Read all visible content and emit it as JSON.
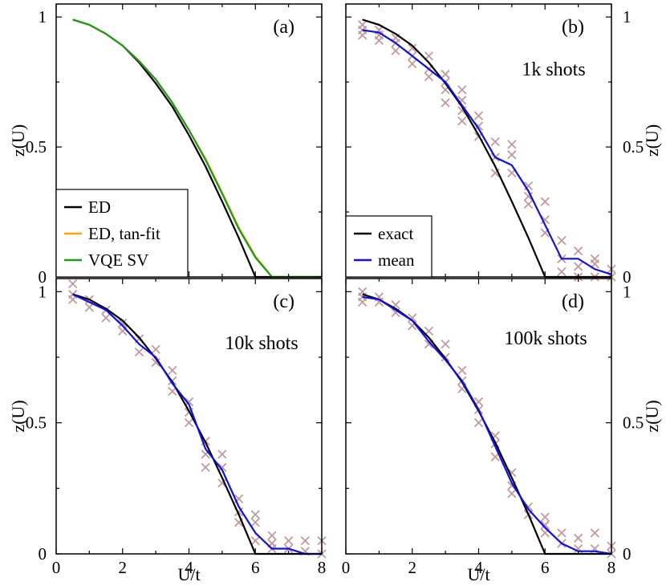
{
  "chart_data": [
    {
      "panel": "(a)",
      "type": "line",
      "ylabel": "z(U)",
      "xlabel": "",
      "xlim": [
        0,
        8
      ],
      "ylim": [
        0,
        1.05
      ],
      "xticks": [
        "",
        "",
        "",
        "",
        ""
      ],
      "yticks": [
        "0",
        "0.5",
        "1"
      ],
      "ytick_side": "left",
      "legend": "bottom-left",
      "series": [
        {
          "name": "ED",
          "color": "#000000",
          "x": [
            0.5,
            1,
            1.5,
            2,
            2.5,
            3,
            3.5,
            4,
            4.5,
            5,
            5.5,
            6,
            6.5,
            7,
            7.5,
            8
          ],
          "y": [
            0.99,
            0.97,
            0.935,
            0.89,
            0.825,
            0.745,
            0.655,
            0.545,
            0.425,
            0.29,
            0.15,
            0,
            0,
            0,
            0,
            0
          ]
        },
        {
          "name": "ED, tan-fit",
          "color": "#ffa500",
          "x": [
            0.5,
            1,
            1.5,
            2,
            2.5,
            3,
            3.5,
            4,
            4.5,
            5,
            5.5,
            6,
            6.5,
            7,
            7.5,
            8
          ],
          "y": [
            0.99,
            0.97,
            0.935,
            0.89,
            0.83,
            0.76,
            0.67,
            0.565,
            0.455,
            0.325,
            0.19,
            0.08,
            0,
            0,
            0,
            0
          ]
        },
        {
          "name": "VQE SV",
          "color": "#1f9a1f",
          "x": [
            0.5,
            1,
            1.5,
            2,
            2.5,
            3,
            3.5,
            4,
            4.5,
            5,
            5.5,
            6,
            6.5,
            7,
            7.5,
            8
          ],
          "y": [
            0.99,
            0.97,
            0.935,
            0.89,
            0.83,
            0.76,
            0.67,
            0.565,
            0.45,
            0.32,
            0.185,
            0.075,
            0,
            0,
            0,
            0
          ]
        }
      ],
      "scatter": []
    },
    {
      "panel": "(b)",
      "type": "line",
      "annotation": "1k shots",
      "ylabel": "z(U)",
      "xlabel": "",
      "xlim": [
        0,
        8
      ],
      "ylim": [
        0,
        1.05
      ],
      "xticks": [
        "",
        "",
        "",
        "",
        ""
      ],
      "yticks": [
        "0",
        "0.5",
        "1"
      ],
      "ytick_side": "right",
      "legend": "bottom-left",
      "series": [
        {
          "name": "exact",
          "color": "#000000",
          "x": [
            0.5,
            1,
            1.5,
            2,
            2.5,
            3,
            3.5,
            4,
            4.5,
            5,
            5.5,
            6,
            6.5,
            7,
            7.5,
            8
          ],
          "y": [
            0.99,
            0.97,
            0.935,
            0.89,
            0.825,
            0.745,
            0.655,
            0.545,
            0.425,
            0.29,
            0.15,
            0,
            0,
            0,
            0,
            0
          ]
        },
        {
          "name": "mean",
          "color": "#1010e0",
          "x": [
            0.5,
            1,
            1.5,
            2,
            2.5,
            3,
            3.5,
            4,
            4.5,
            5,
            5.5,
            6,
            6.5,
            7,
            7.5,
            8
          ],
          "y": [
            0.95,
            0.94,
            0.9,
            0.85,
            0.8,
            0.75,
            0.66,
            0.57,
            0.46,
            0.43,
            0.33,
            0.2,
            0.07,
            0.07,
            0.03,
            0.01
          ]
        }
      ],
      "scatter": [
        [
          0.5,
          0.97
        ],
        [
          0.5,
          0.95
        ],
        [
          0.5,
          0.93
        ],
        [
          1,
          0.95
        ],
        [
          1,
          0.93
        ],
        [
          1,
          0.91
        ],
        [
          1.5,
          0.92
        ],
        [
          1.5,
          0.9
        ],
        [
          1.5,
          0.87
        ],
        [
          2,
          0.88
        ],
        [
          2,
          0.85
        ],
        [
          2,
          0.82
        ],
        [
          2.5,
          0.85
        ],
        [
          2.5,
          0.8
        ],
        [
          2.5,
          0.77
        ],
        [
          3,
          0.78
        ],
        [
          3,
          0.75
        ],
        [
          3,
          0.72
        ],
        [
          3,
          0.67
        ],
        [
          3.5,
          0.72
        ],
        [
          3.5,
          0.68
        ],
        [
          3.5,
          0.64
        ],
        [
          3.5,
          0.6
        ],
        [
          4,
          0.62
        ],
        [
          4,
          0.58
        ],
        [
          4,
          0.54
        ],
        [
          4.5,
          0.52
        ],
        [
          4.5,
          0.46
        ],
        [
          4.5,
          0.4
        ],
        [
          5,
          0.51
        ],
        [
          5,
          0.47
        ],
        [
          5,
          0.4
        ],
        [
          5.5,
          0.35
        ],
        [
          5.5,
          0.31
        ],
        [
          5.5,
          0.28
        ],
        [
          6,
          0.29
        ],
        [
          6,
          0.22
        ],
        [
          6,
          0.17
        ],
        [
          6.5,
          0.14
        ],
        [
          6.5,
          0.07
        ],
        [
          6.5,
          0.02
        ],
        [
          7,
          0.1
        ],
        [
          7,
          0.04
        ],
        [
          7,
          0.0
        ],
        [
          7.5,
          0.07
        ],
        [
          7.5,
          0.05
        ],
        [
          7.5,
          0.0
        ],
        [
          8,
          0.03
        ],
        [
          8,
          0.0
        ]
      ]
    },
    {
      "panel": "(c)",
      "type": "line",
      "annotation": "10k shots",
      "ylabel": "z(U)",
      "xlabel": "U/t",
      "xlim": [
        0,
        8
      ],
      "ylim": [
        0,
        1.05
      ],
      "xticks": [
        "0",
        "2",
        "4",
        "6",
        "8"
      ],
      "yticks": [
        "0",
        "0.5",
        "1"
      ],
      "ytick_side": "left",
      "legend": "none",
      "series": [
        {
          "name": "exact",
          "color": "#000000",
          "x": [
            0.5,
            1,
            1.5,
            2,
            2.5,
            3,
            3.5,
            4,
            4.5,
            5,
            5.5,
            6,
            6.5,
            7,
            7.5,
            8
          ],
          "y": [
            0.99,
            0.97,
            0.935,
            0.89,
            0.825,
            0.745,
            0.655,
            0.545,
            0.425,
            0.29,
            0.15,
            0,
            0,
            0,
            0,
            0
          ]
        },
        {
          "name": "mean",
          "color": "#1010e0",
          "x": [
            0.5,
            1,
            1.5,
            2,
            2.5,
            3,
            3.5,
            4,
            4.5,
            5,
            5.5,
            6,
            6.5,
            7,
            7.5,
            8
          ],
          "y": [
            0.99,
            0.96,
            0.93,
            0.87,
            0.8,
            0.75,
            0.65,
            0.57,
            0.4,
            0.32,
            0.18,
            0.08,
            0.02,
            0.02,
            0.0,
            0.0
          ]
        }
      ],
      "scatter": [
        [
          0.5,
          1.03
        ],
        [
          0.5,
          0.99
        ],
        [
          0.5,
          0.97
        ],
        [
          1,
          0.97
        ],
        [
          1,
          0.94
        ],
        [
          1.5,
          0.93
        ],
        [
          1.5,
          0.9
        ],
        [
          2,
          0.88
        ],
        [
          2,
          0.85
        ],
        [
          2.5,
          0.82
        ],
        [
          2.5,
          0.77
        ],
        [
          3,
          0.78
        ],
        [
          3,
          0.73
        ],
        [
          3.5,
          0.7
        ],
        [
          3.5,
          0.66
        ],
        [
          3.5,
          0.62
        ],
        [
          4,
          0.58
        ],
        [
          4,
          0.54
        ],
        [
          4,
          0.5
        ],
        [
          4.5,
          0.43
        ],
        [
          4.5,
          0.38
        ],
        [
          4.5,
          0.33
        ],
        [
          5,
          0.38
        ],
        [
          5,
          0.33
        ],
        [
          5,
          0.27
        ],
        [
          5.5,
          0.21
        ],
        [
          5.5,
          0.16
        ],
        [
          5.5,
          0.12
        ],
        [
          6,
          0.15
        ],
        [
          6,
          0.12
        ],
        [
          6,
          0.05
        ],
        [
          6.5,
          0.07
        ],
        [
          6.5,
          0.04
        ],
        [
          6.5,
          0.02
        ],
        [
          7,
          0.05
        ],
        [
          7,
          0.02
        ],
        [
          7.5,
          0.05
        ],
        [
          7.5,
          0.01
        ],
        [
          8,
          0.05
        ],
        [
          8,
          0.0
        ]
      ]
    },
    {
      "panel": "(d)",
      "type": "line",
      "annotation": "100k shots",
      "ylabel": "z(U)",
      "xlabel": "U/t",
      "xlim": [
        0,
        8
      ],
      "ylim": [
        0,
        1.05
      ],
      "xticks": [
        "0",
        "2",
        "4",
        "6",
        "8"
      ],
      "yticks": [
        "0",
        "0.5",
        "1"
      ],
      "ytick_side": "right",
      "legend": "none",
      "series": [
        {
          "name": "exact",
          "color": "#000000",
          "x": [
            0.5,
            1,
            1.5,
            2,
            2.5,
            3,
            3.5,
            4,
            4.5,
            5,
            5.5,
            6,
            6.5,
            7,
            7.5,
            8
          ],
          "y": [
            0.99,
            0.97,
            0.935,
            0.89,
            0.825,
            0.745,
            0.655,
            0.545,
            0.425,
            0.29,
            0.15,
            0,
            0,
            0,
            0,
            0
          ]
        },
        {
          "name": "mean",
          "color": "#1010e0",
          "x": [
            0.5,
            1,
            1.5,
            2,
            2.5,
            3,
            3.5,
            4,
            4.5,
            5,
            5.5,
            6,
            6.5,
            7,
            7.5,
            8
          ],
          "y": [
            0.98,
            0.97,
            0.93,
            0.89,
            0.81,
            0.74,
            0.66,
            0.55,
            0.41,
            0.27,
            0.17,
            0.1,
            0.04,
            0.01,
            0.01,
            0.0
          ]
        }
      ],
      "scatter": [
        [
          0.5,
          1.0
        ],
        [
          0.5,
          0.98
        ],
        [
          0.5,
          0.96
        ],
        [
          1,
          0.98
        ],
        [
          1,
          0.96
        ],
        [
          1.5,
          0.95
        ],
        [
          1.5,
          0.92
        ],
        [
          2,
          0.9
        ],
        [
          2,
          0.87
        ],
        [
          2.5,
          0.85
        ],
        [
          2.5,
          0.8
        ],
        [
          3,
          0.8
        ],
        [
          3,
          0.75
        ],
        [
          3.5,
          0.7
        ],
        [
          3.5,
          0.66
        ],
        [
          3.5,
          0.63
        ],
        [
          4,
          0.58
        ],
        [
          4,
          0.55
        ],
        [
          4,
          0.5
        ],
        [
          4.5,
          0.45
        ],
        [
          4.5,
          0.42
        ],
        [
          4.5,
          0.37
        ],
        [
          5,
          0.31
        ],
        [
          5,
          0.26
        ],
        [
          5,
          0.23
        ],
        [
          5.5,
          0.18
        ],
        [
          5.5,
          0.15
        ],
        [
          6,
          0.14
        ],
        [
          6,
          0.11
        ],
        [
          6,
          0.08
        ],
        [
          6.5,
          0.08
        ],
        [
          6.5,
          0.04
        ],
        [
          7,
          0.06
        ],
        [
          7,
          0.02
        ],
        [
          7.5,
          0.08
        ],
        [
          7.5,
          0.02
        ],
        [
          8,
          0.03
        ],
        [
          8,
          0.0
        ]
      ]
    }
  ]
}
